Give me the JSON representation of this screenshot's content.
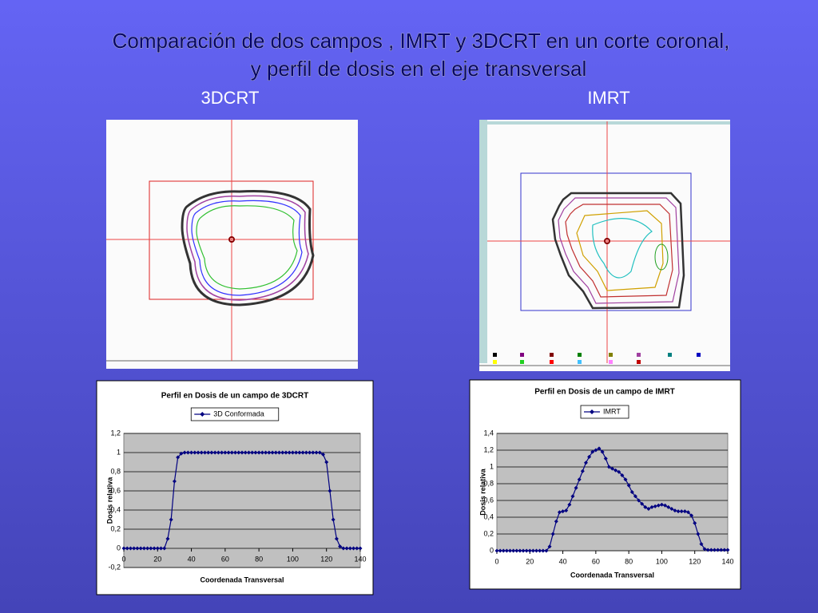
{
  "title": [
    "Comparación de dos campos , IMRT y 3DCRT en un corte coronal,",
    "y perfil de dosis en el eje transversal"
  ],
  "panels": [
    "3DCRT",
    "IMRT"
  ],
  "chart_data": [
    {
      "type": "line",
      "title": "Perfil en Dosis de un campo de 3DCRT",
      "x_label": "Coordenada Transversal",
      "y_label": "Dosis relativa",
      "x": [
        0,
        2,
        4,
        6,
        8,
        10,
        12,
        14,
        16,
        18,
        20,
        22,
        24,
        26,
        28,
        30,
        32,
        34,
        36,
        38,
        40,
        42,
        44,
        46,
        48,
        50,
        52,
        54,
        56,
        58,
        60,
        62,
        64,
        66,
        68,
        70,
        72,
        74,
        76,
        78,
        80,
        82,
        84,
        86,
        88,
        90,
        92,
        94,
        96,
        98,
        100,
        102,
        104,
        106,
        108,
        110,
        112,
        114,
        116,
        118,
        120,
        122,
        124,
        126,
        128,
        130,
        132,
        134,
        136,
        138,
        140
      ],
      "series": [
        {
          "name": "3D Conformada",
          "color": "#000080",
          "values": [
            0,
            0,
            0,
            0,
            0,
            0,
            0,
            0,
            0,
            0,
            0,
            0,
            0,
            0.1,
            0.3,
            0.7,
            0.95,
            0.99,
            1,
            1,
            1,
            1,
            1,
            1,
            1,
            1,
            1,
            1,
            1,
            1,
            1,
            1,
            1,
            1,
            1,
            1,
            1,
            1,
            1,
            1,
            1,
            1,
            1,
            1,
            1,
            1,
            1,
            1,
            1,
            1,
            1,
            1,
            1,
            1,
            1,
            1,
            1,
            1,
            1,
            0.98,
            0.9,
            0.6,
            0.3,
            0.1,
            0.02,
            0,
            0,
            0,
            0,
            0,
            0
          ]
        }
      ],
      "xlim": [
        0,
        140
      ],
      "xticks": [
        0,
        20,
        40,
        60,
        80,
        100,
        120,
        140
      ],
      "ylim": [
        -0.2,
        1.2
      ],
      "yticks": [
        {
          "value": -0.2,
          "label": "-0,2"
        },
        0,
        {
          "value": 0.2,
          "label": "0,2"
        },
        {
          "value": 0.4,
          "label": "0,4"
        },
        {
          "value": 0.6,
          "label": "0,6"
        },
        {
          "value": 0.8,
          "label": "0,8"
        },
        1,
        {
          "value": 1.2,
          "label": "1,2"
        }
      ],
      "grid": true
    },
    {
      "type": "line",
      "title": "Perfil en Dosis de un campo de IMRT",
      "x_label": "Coordenada Transversal",
      "y_label": "Dosis relativa",
      "x": [
        0,
        2,
        4,
        6,
        8,
        10,
        12,
        14,
        16,
        18,
        20,
        22,
        24,
        26,
        28,
        30,
        32,
        34,
        36,
        38,
        40,
        42,
        44,
        46,
        48,
        50,
        52,
        54,
        56,
        58,
        60,
        62,
        64,
        66,
        68,
        70,
        72,
        74,
        76,
        78,
        80,
        82,
        84,
        86,
        88,
        90,
        92,
        94,
        96,
        98,
        100,
        102,
        104,
        106,
        108,
        110,
        112,
        114,
        116,
        118,
        120,
        122,
        124,
        126,
        128,
        130,
        132,
        134,
        136,
        138,
        140
      ],
      "series": [
        {
          "name": "IMRT",
          "color": "#000080",
          "values": [
            0,
            0,
            0,
            0,
            0,
            0,
            0,
            0,
            0,
            0,
            0,
            0,
            0,
            0,
            0,
            0,
            0.05,
            0.2,
            0.35,
            0.46,
            0.47,
            0.48,
            0.55,
            0.65,
            0.75,
            0.85,
            0.95,
            1.05,
            1.12,
            1.18,
            1.2,
            1.22,
            1.18,
            1.1,
            1.0,
            0.98,
            0.96,
            0.94,
            0.9,
            0.85,
            0.78,
            0.7,
            0.65,
            0.6,
            0.56,
            0.52,
            0.5,
            0.52,
            0.53,
            0.54,
            0.55,
            0.54,
            0.52,
            0.5,
            0.48,
            0.47,
            0.47,
            0.47,
            0.46,
            0.42,
            0.33,
            0.2,
            0.08,
            0.02,
            0.01,
            0.01,
            0.01,
            0.01,
            0.01,
            0.01,
            0.01
          ]
        }
      ],
      "xlim": [
        0,
        140
      ],
      "xticks": [
        0,
        20,
        40,
        60,
        80,
        100,
        120,
        140
      ],
      "ylim": [
        0,
        1.4
      ],
      "yticks": [
        0,
        {
          "value": 0.2,
          "label": "0,2"
        },
        {
          "value": 0.4,
          "label": "0,4"
        },
        {
          "value": 0.6,
          "label": "0,6"
        },
        {
          "value": 0.8,
          "label": "0,8"
        },
        1,
        {
          "value": 1.2,
          "label": "1,2"
        },
        {
          "value": 1.4,
          "label": "1,4"
        }
      ],
      "grid": true
    }
  ]
}
